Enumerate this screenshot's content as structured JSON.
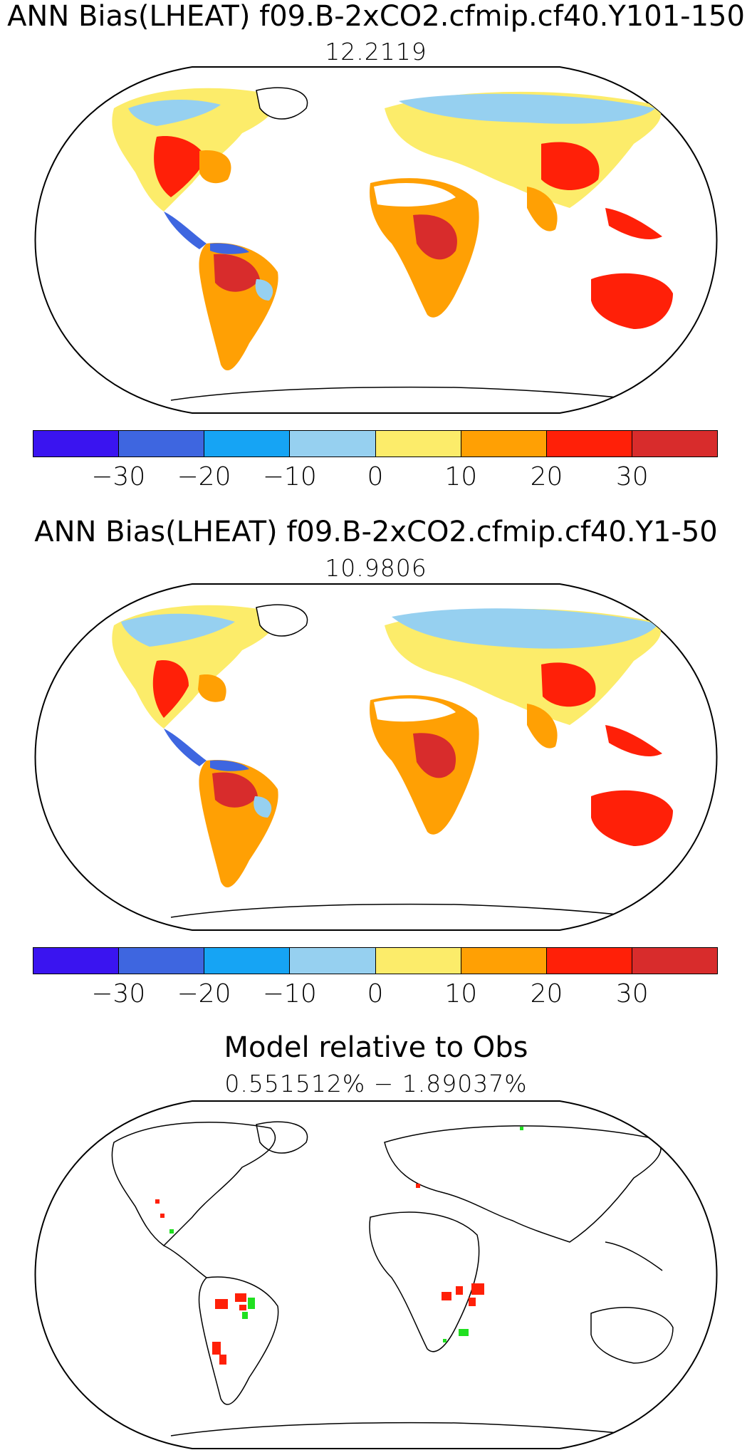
{
  "panels": [
    {
      "title": "ANN Bias(LHEAT) f09.B-2xCO2.cfmip.cf40.Y101-150",
      "subtitle": "12.2119"
    },
    {
      "title": "ANN Bias(LHEAT) f09.B-2xCO2.cfmip.cf40.Y1-50",
      "subtitle": "10.9806"
    },
    {
      "title": "Model relative to Obs",
      "subtitle": "0.551512%  −  1.89037%"
    }
  ],
  "colorbar": {
    "colors": [
      "#3a14f0",
      "#3e66e0",
      "#16a4f4",
      "#96d0f0",
      "#fcec6a",
      "#ffa004",
      "#ff2008",
      "#d82c2c"
    ],
    "ticks": [
      "−30",
      "−20",
      "−10",
      "0",
      "10",
      "20",
      "30"
    ]
  }
}
